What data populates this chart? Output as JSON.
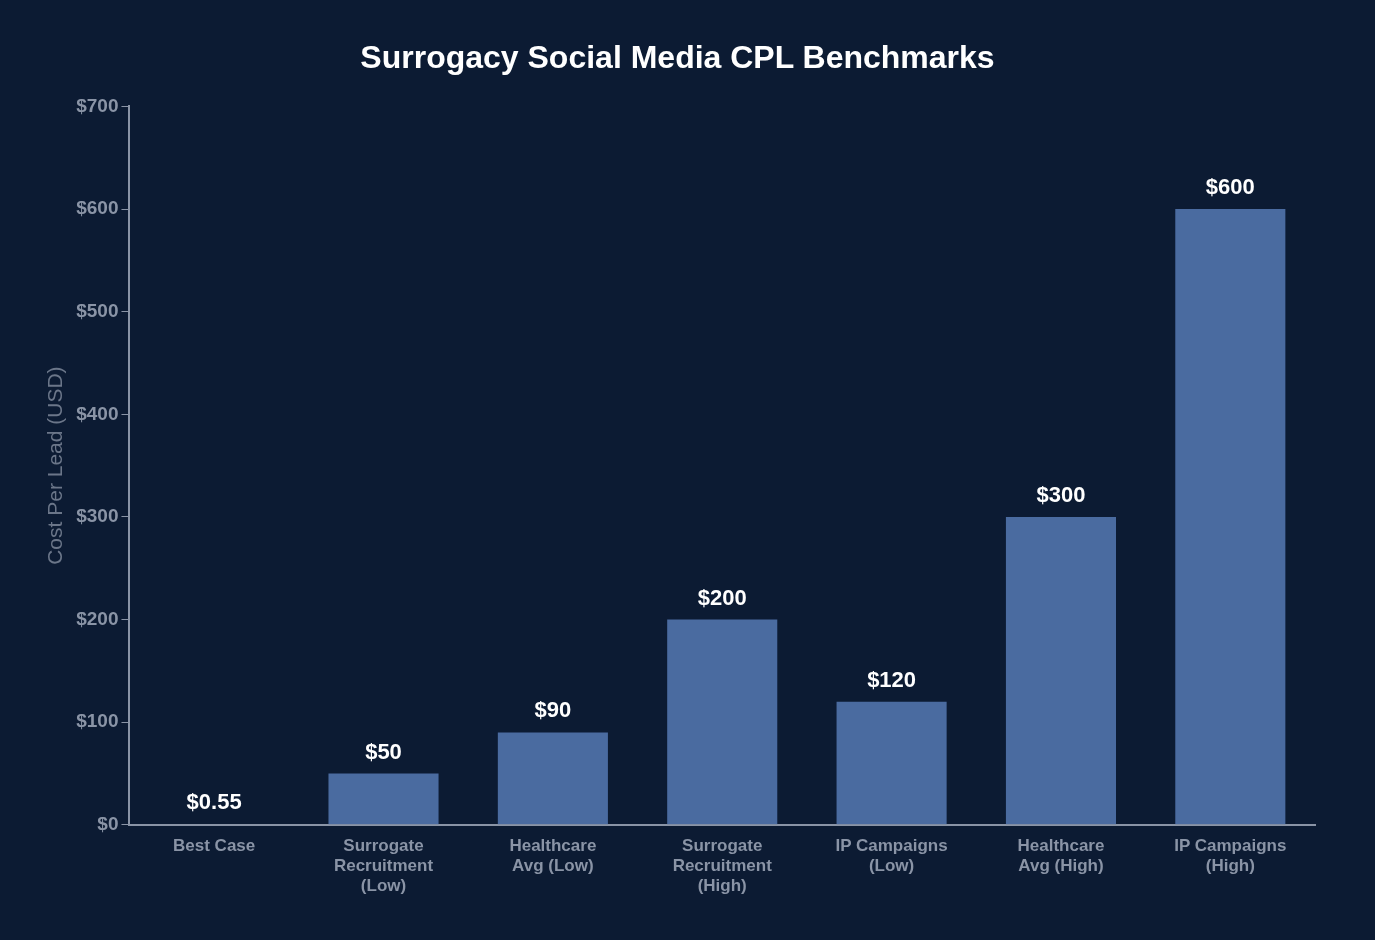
{
  "chart_data": {
    "type": "bar",
    "title": "Surrogacy Social Media CPL Benchmarks",
    "ylabel": "Cost Per Lead (USD)",
    "categories": [
      "Best Case",
      "Surrogate Recruitment (Low)",
      "Healthcare Avg (Low)",
      "Surrogate Recruitment (High)",
      "IP Campaigns (Low)",
      "Healthcare Avg (High)",
      "IP Campaigns (High)"
    ],
    "values": [
      0.55,
      50,
      90,
      200,
      120,
      300,
      600
    ],
    "value_labels": [
      "$0.55",
      "$50",
      "$90",
      "$200",
      "$120",
      "$300",
      "$600"
    ],
    "color": "#4a6ba0",
    "ylim": [
      0,
      700
    ],
    "yticks": [
      {
        "value": 0,
        "label": "$0"
      },
      {
        "value": 100,
        "label": "$100"
      },
      {
        "value": 200,
        "label": "$200"
      },
      {
        "value": 300,
        "label": "$300"
      },
      {
        "value": 400,
        "label": "$400"
      },
      {
        "value": 500,
        "label": "$500"
      },
      {
        "value": 600,
        "label": "$600"
      },
      {
        "value": 700,
        "label": "$700"
      }
    ],
    "grid": false,
    "legend": false
  }
}
